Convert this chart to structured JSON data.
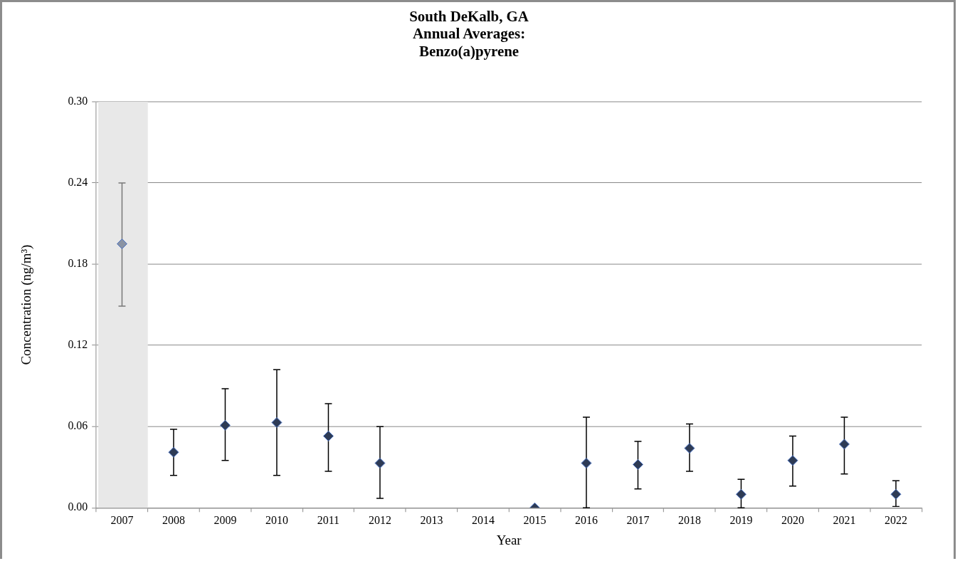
{
  "chart_data": {
    "type": "scatter",
    "title": "South DeKalb, GA\nAnnual Averages:\nBenzo(a)pyrene",
    "xlabel": "Year",
    "ylabel": "Concentration (ng/m³)",
    "categories": [
      "2007",
      "2008",
      "2009",
      "2010",
      "2011",
      "2012",
      "2013",
      "2014",
      "2015",
      "2016",
      "2017",
      "2018",
      "2019",
      "2020",
      "2021",
      "2022"
    ],
    "values": [
      0.195,
      0.041,
      0.061,
      0.063,
      0.053,
      0.033,
      null,
      null,
      0,
      0.033,
      0.032,
      0.044,
      0.01,
      0.035,
      0.047,
      0.01
    ],
    "errors": [
      [
        0.149,
        0.24
      ],
      [
        0.024,
        0.058
      ],
      [
        0.035,
        0.088
      ],
      [
        0.024,
        0.102
      ],
      [
        0.027,
        0.077
      ],
      [
        0.007,
        0.06
      ],
      null,
      null,
      null,
      [
        0,
        0.067
      ],
      [
        0.014,
        0.049
      ],
      [
        0.027,
        0.062
      ],
      [
        0,
        0.021
      ],
      [
        0.016,
        0.053
      ],
      [
        0.025,
        0.067
      ],
      [
        0.001,
        0.02
      ]
    ],
    "colors": [
      "#8a93a3",
      "#2e3b55",
      "#2e3b55",
      "#2e3b55",
      "#2e3b55",
      "#2e3b55",
      "#2e3b55",
      "#2e3b55",
      "#2e3b55",
      "#2e3b55",
      "#2e3b55",
      "#2e3b55",
      "#2e3b55",
      "#2e3b55",
      "#2e3b55",
      "#2e3b55"
    ],
    "bands": [
      {
        "axis": "x",
        "from": "2007",
        "to": "2007",
        "color": "#e8e8e8"
      }
    ],
    "ylim": [
      0,
      0.3
    ],
    "yticks": [
      {
        "value": 0,
        "label": "0.00"
      },
      {
        "value": 0.06,
        "label": "0.06"
      },
      {
        "value": 0.12,
        "label": "0.12"
      },
      {
        "value": 0.18,
        "label": "0.18"
      },
      {
        "value": 0.24,
        "label": "0.24"
      },
      {
        "value": 0.3,
        "label": "0.30"
      }
    ],
    "grid": "y",
    "marker": "diamond",
    "legend": false
  }
}
